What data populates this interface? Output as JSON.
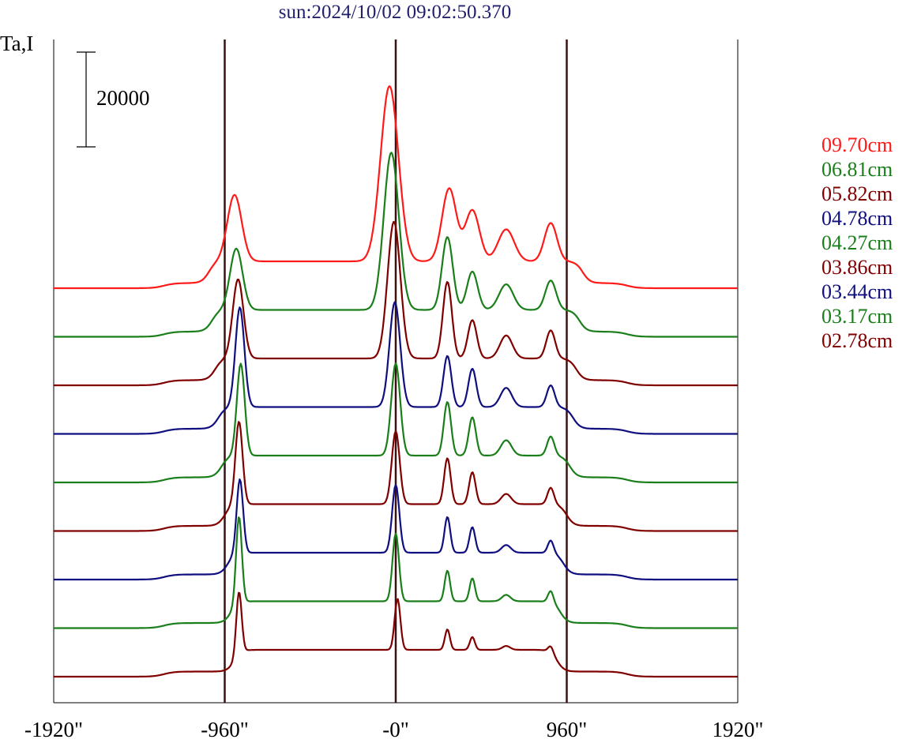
{
  "title": "sun:2024/10/02 09:02:50.370",
  "ylabel": "Ta,I",
  "scale_bar_label": "20000",
  "colors": {
    "red": "#ff1a1a",
    "green": "#1a7f1a",
    "maroon": "#800000",
    "blue": "#0f0f80",
    "axis": "#000000",
    "vline": "#3a1212"
  },
  "chart_data": {
    "type": "line",
    "title": "sun:2024/10/02 09:02:50.370",
    "ylabel": "Ta,I",
    "xlabel": "",
    "x_ticks": [
      "-1920\"",
      "-960\"",
      "-0\"",
      "960\"",
      "1920\""
    ],
    "x_tick_values": [
      -1920,
      -960,
      0,
      960,
      1920
    ],
    "xlim": [
      -1920,
      1920
    ],
    "vertical_lines": [
      -960,
      0,
      960
    ],
    "scale_bar": 20000,
    "legend_placement": "right",
    "series": [
      {
        "name": "09.70cm",
        "color": "red",
        "offset": 0,
        "baseline": 0,
        "peaks": [
          {
            "x": -905,
            "h": 52000,
            "w": 40
          },
          {
            "x": -35,
            "h": 137000,
            "w": 50
          },
          {
            "x": 300,
            "h": 57000,
            "w": 40
          },
          {
            "x": 430,
            "h": 40000,
            "w": 40
          },
          {
            "x": 620,
            "h": 25000,
            "w": 45
          },
          {
            "x": 870,
            "h": 30000,
            "w": 35
          }
        ]
      },
      {
        "name": "06.81cm",
        "color": "green",
        "offset": 1,
        "baseline": 0,
        "peaks": [
          {
            "x": -895,
            "h": 48000,
            "w": 35
          },
          {
            "x": -25,
            "h": 123000,
            "w": 42
          },
          {
            "x": 290,
            "h": 57000,
            "w": 30
          },
          {
            "x": 430,
            "h": 30000,
            "w": 30
          },
          {
            "x": 620,
            "h": 20000,
            "w": 40
          },
          {
            "x": 870,
            "h": 23000,
            "w": 30
          }
        ]
      },
      {
        "name": "05.82cm",
        "color": "maroon",
        "offset": 2,
        "baseline": 0,
        "peaks": [
          {
            "x": -885,
            "h": 62000,
            "w": 30
          },
          {
            "x": -10,
            "h": 107000,
            "w": 36
          },
          {
            "x": 290,
            "h": 60000,
            "w": 25
          },
          {
            "x": 430,
            "h": 30000,
            "w": 25
          },
          {
            "x": 620,
            "h": 18000,
            "w": 35
          },
          {
            "x": 870,
            "h": 22000,
            "w": 25
          }
        ]
      },
      {
        "name": "04.78cm",
        "color": "blue",
        "offset": 3,
        "baseline": 0,
        "peaks": [
          {
            "x": -875,
            "h": 78000,
            "w": 25
          },
          {
            "x": -5,
            "h": 82000,
            "w": 30
          },
          {
            "x": 290,
            "h": 40000,
            "w": 22
          },
          {
            "x": 430,
            "h": 30000,
            "w": 22
          },
          {
            "x": 620,
            "h": 15000,
            "w": 32
          },
          {
            "x": 870,
            "h": 17000,
            "w": 22
          }
        ]
      },
      {
        "name": "04.27cm",
        "color": "green",
        "offset": 4,
        "baseline": 0,
        "peaks": [
          {
            "x": -870,
            "h": 72000,
            "w": 22
          },
          {
            "x": 0,
            "h": 72000,
            "w": 25
          },
          {
            "x": 290,
            "h": 42000,
            "w": 20
          },
          {
            "x": 430,
            "h": 30000,
            "w": 20
          },
          {
            "x": 620,
            "h": 12000,
            "w": 30
          },
          {
            "x": 870,
            "h": 15000,
            "w": 20
          }
        ]
      },
      {
        "name": "03.86cm",
        "color": "maroon",
        "offset": 5,
        "baseline": 0,
        "peaks": [
          {
            "x": -880,
            "h": 65000,
            "w": 20
          },
          {
            "x": 0,
            "h": 57000,
            "w": 22
          },
          {
            "x": 290,
            "h": 36000,
            "w": 18
          },
          {
            "x": 430,
            "h": 25000,
            "w": 18
          },
          {
            "x": 620,
            "h": 8000,
            "w": 28
          },
          {
            "x": 870,
            "h": 13000,
            "w": 18
          }
        ]
      },
      {
        "name": "03.44cm",
        "color": "blue",
        "offset": 6,
        "baseline": 0,
        "peaks": [
          {
            "x": -875,
            "h": 58000,
            "w": 18
          },
          {
            "x": 0,
            "h": 53000,
            "w": 20
          },
          {
            "x": 290,
            "h": 28000,
            "w": 16
          },
          {
            "x": 430,
            "h": 20000,
            "w": 16
          },
          {
            "x": 620,
            "h": 6000,
            "w": 26
          },
          {
            "x": 870,
            "h": 10000,
            "w": 16
          }
        ]
      },
      {
        "name": "03.17cm",
        "color": "green",
        "offset": 7,
        "baseline": 0,
        "peaks": [
          {
            "x": -880,
            "h": 68000,
            "w": 16
          },
          {
            "x": 0,
            "h": 53000,
            "w": 18
          },
          {
            "x": 290,
            "h": 24000,
            "w": 15
          },
          {
            "x": 430,
            "h": 18000,
            "w": 15
          },
          {
            "x": 620,
            "h": 5000,
            "w": 24
          },
          {
            "x": 870,
            "h": 9000,
            "w": 15
          }
        ]
      },
      {
        "name": "02.78cm",
        "color": "maroon",
        "offset": 8,
        "baseline": 0,
        "peaks": [
          {
            "x": -880,
            "h": 49000,
            "w": 15
          },
          {
            "x": 10,
            "h": 40000,
            "w": 16
          },
          {
            "x": 290,
            "h": 16000,
            "w": 14
          },
          {
            "x": 430,
            "h": 10000,
            "w": 14
          },
          {
            "x": 620,
            "h": 3000,
            "w": 22
          },
          {
            "x": 870,
            "h": 5000,
            "w": 14
          }
        ]
      }
    ]
  }
}
